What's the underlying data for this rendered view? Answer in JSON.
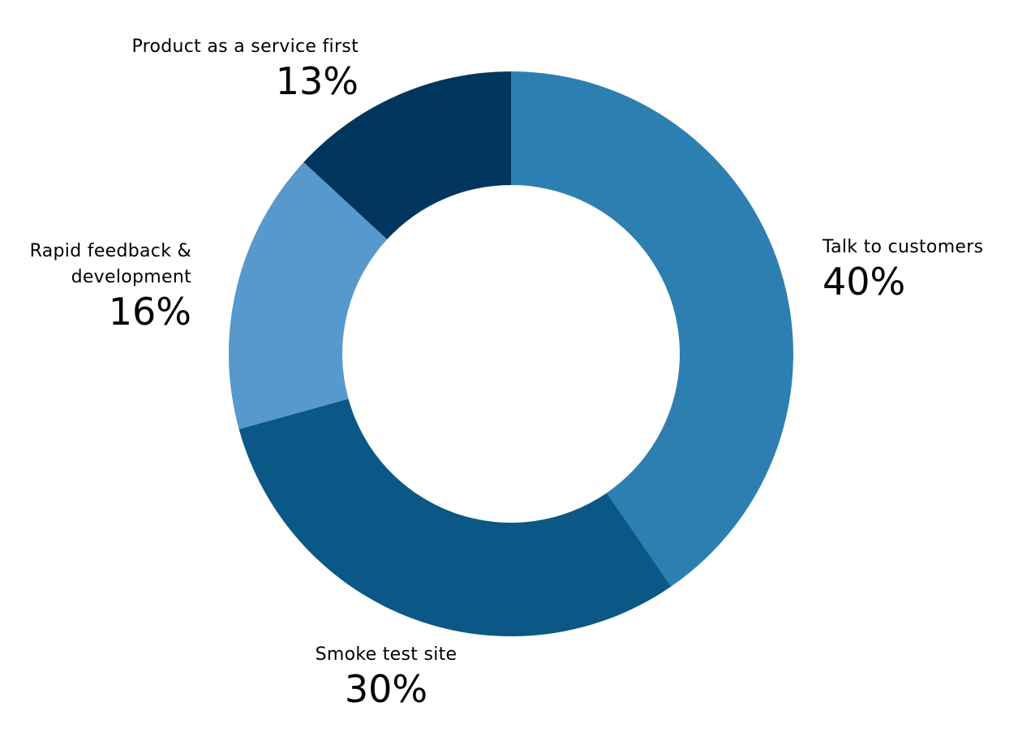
{
  "chart_data": {
    "type": "pie",
    "donut": true,
    "title": "",
    "categories": [
      "Talk to customers",
      "Smoke test site",
      "Rapid feedback &\ndevelopment",
      "Product as a service first"
    ],
    "values": [
      40,
      30,
      16,
      13
    ],
    "value_labels": [
      "40%",
      "30%",
      "16%",
      "13%"
    ],
    "colors": [
      "#2e7fb1",
      "#0b5886",
      "#5799cd",
      "#00365e"
    ],
    "legend": "none"
  }
}
